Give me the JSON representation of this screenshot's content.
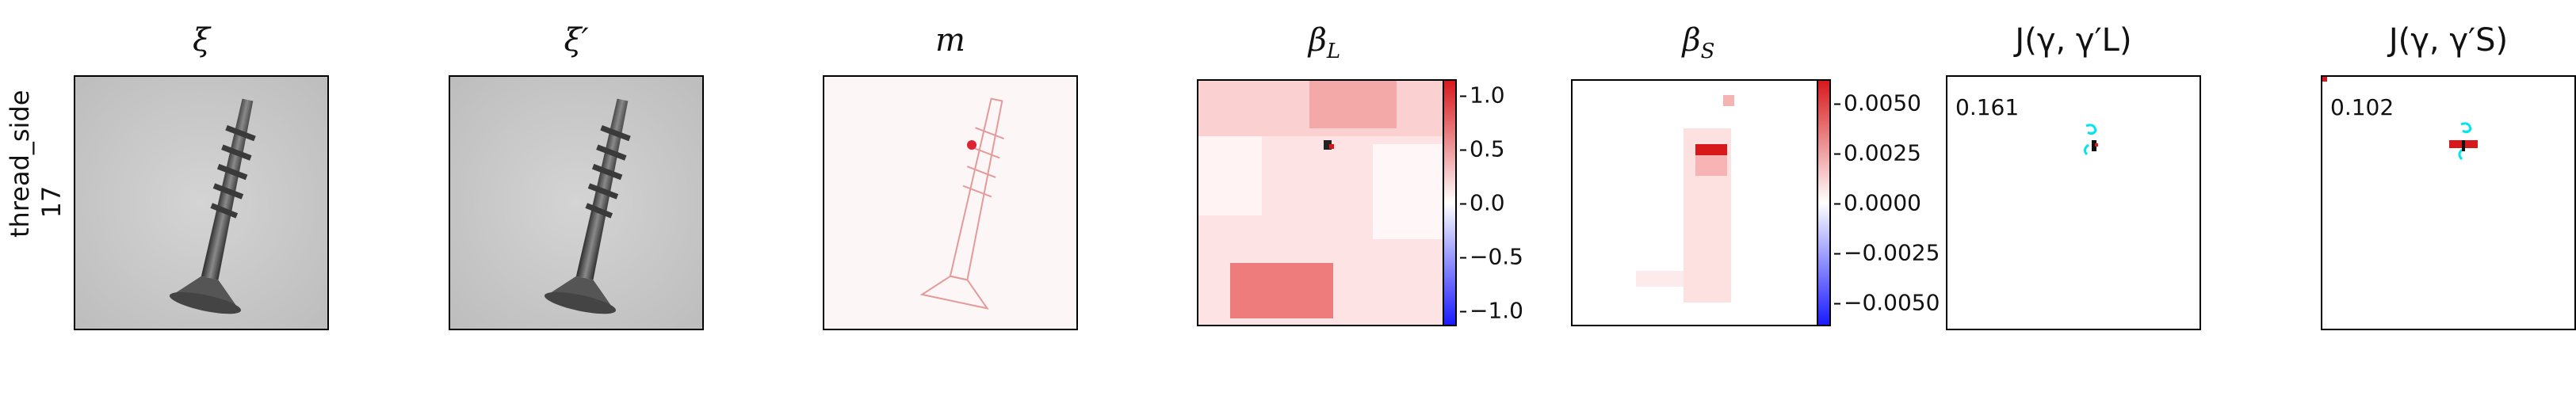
{
  "row_label": [
    "thread_side",
    "17"
  ],
  "panels": {
    "xi": {
      "title": "ξ"
    },
    "xi_prime": {
      "title": "ξ′"
    },
    "m": {
      "title": "m"
    },
    "beta_L": {
      "title": "β",
      "sub": "L",
      "colorbar_ticks": [
        "1.0",
        "0.5",
        "0.0",
        "−0.5",
        "−1.0"
      ]
    },
    "beta_S": {
      "title": "β",
      "sub": "S",
      "colorbar_ticks": [
        "0.0050",
        "0.0025",
        "0.0000",
        "−0.0025",
        "−0.0050"
      ]
    },
    "j_L": {
      "title": "J(γ, γ′L)",
      "score": "0.161"
    },
    "j_S": {
      "title": "J(γ, γ′S)",
      "score": "0.102"
    }
  },
  "colors": {
    "positive": "#d7191c",
    "negative": "#1a1aff",
    "contour": "#00e5ee"
  }
}
